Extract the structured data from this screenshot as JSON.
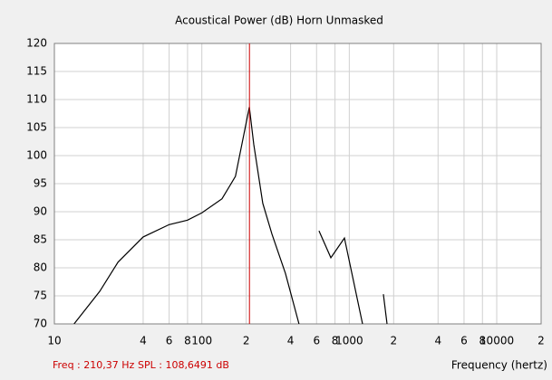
{
  "chart_data": {
    "type": "line",
    "title": "Acoustical Power (dB)   Horn   Unmasked",
    "x_label": "Frequency (hertz)",
    "readout_freq": "Freq : 210,37 Hz",
    "readout_spl": "SPL : 108,6491 dB",
    "log_x": true,
    "grid": true,
    "xlim": [
      10,
      20000
    ],
    "ylim": [
      70,
      120
    ],
    "xticks": [
      10,
      {
        "value": 40,
        "label": "4"
      },
      {
        "value": 60,
        "label": "6"
      },
      {
        "value": 80,
        "label": "8"
      },
      100,
      {
        "value": 200,
        "label": "2"
      },
      {
        "value": 400,
        "label": "4"
      },
      {
        "value": 600,
        "label": "6"
      },
      {
        "value": 800,
        "label": "8"
      },
      1000,
      {
        "value": 2000,
        "label": "2"
      },
      {
        "value": 4000,
        "label": "4"
      },
      {
        "value": 6000,
        "label": "6"
      },
      {
        "value": 8000,
        "label": "8"
      },
      10000,
      {
        "value": 20000,
        "label": "2"
      }
    ],
    "yticks": [
      70,
      75,
      80,
      85,
      90,
      95,
      100,
      105,
      110,
      115,
      120
    ],
    "cursor_x": 210.37,
    "cursor_color": "#cc0000",
    "series": [
      {
        "color": "#000000",
        "x": [
          13.6,
          20.3,
          27,
          40,
          60,
          80,
          100,
          137,
          169,
          210,
          225,
          259,
          299,
          369,
          456,
          565,
          623,
          750,
          927,
          1067,
          1230,
          1633,
          1703,
          1803
        ],
        "values": [
          70,
          75.8,
          81,
          85.5,
          87.7,
          88.5,
          89.8,
          92.3,
          96.3,
          108.65,
          102,
          91.5,
          86,
          79,
          70,
          null,
          86.6,
          81.8,
          85.3,
          77.7,
          70,
          null,
          75.3,
          70
        ]
      }
    ]
  }
}
